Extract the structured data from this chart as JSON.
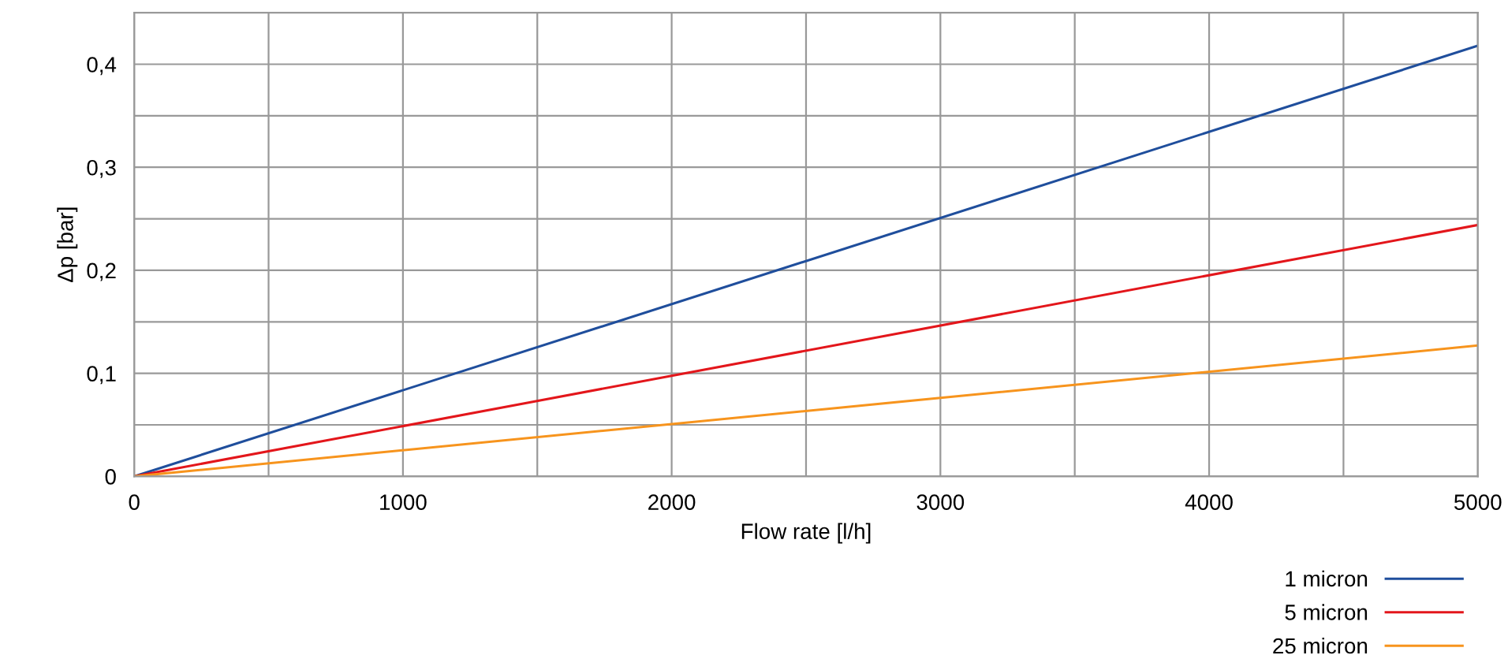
{
  "chart_data": {
    "type": "line",
    "xlabel": "Flow rate [l/h]",
    "ylabel": "Δp [bar]",
    "x": [
      0,
      5000
    ],
    "series": [
      {
        "name": "1 micron",
        "color": "#1f4e9c",
        "values": [
          0,
          0.418
        ]
      },
      {
        "name": "5 micron",
        "color": "#e3161b",
        "values": [
          0,
          0.244
        ]
      },
      {
        "name": "25 micron",
        "color": "#f7941d",
        "values": [
          0,
          0.127
        ]
      }
    ],
    "xlim": [
      0,
      5000
    ],
    "ylim": [
      0,
      0.45
    ],
    "xticks": [
      0,
      {
        "value": 500,
        "label": null
      },
      1000,
      {
        "value": 1500,
        "label": null
      },
      2000,
      {
        "value": 2500,
        "label": null
      },
      3000,
      {
        "value": 3500,
        "label": null
      },
      4000,
      {
        "value": 4500,
        "label": null
      },
      5000
    ],
    "yticks": [
      {
        "value": 0,
        "label": "0"
      },
      {
        "value": 0.05,
        "label": null
      },
      {
        "value": 0.1,
        "label": "0,1"
      },
      {
        "value": 0.15,
        "label": null
      },
      {
        "value": 0.2,
        "label": "0,2"
      },
      {
        "value": 0.25,
        "label": null
      },
      {
        "value": 0.3,
        "label": "0,3"
      },
      {
        "value": 0.35,
        "label": null
      },
      {
        "value": 0.4,
        "label": "0,4"
      }
    ],
    "grid": true,
    "legend": "bottom right",
    "marker": "none",
    "line_style": "solid"
  }
}
